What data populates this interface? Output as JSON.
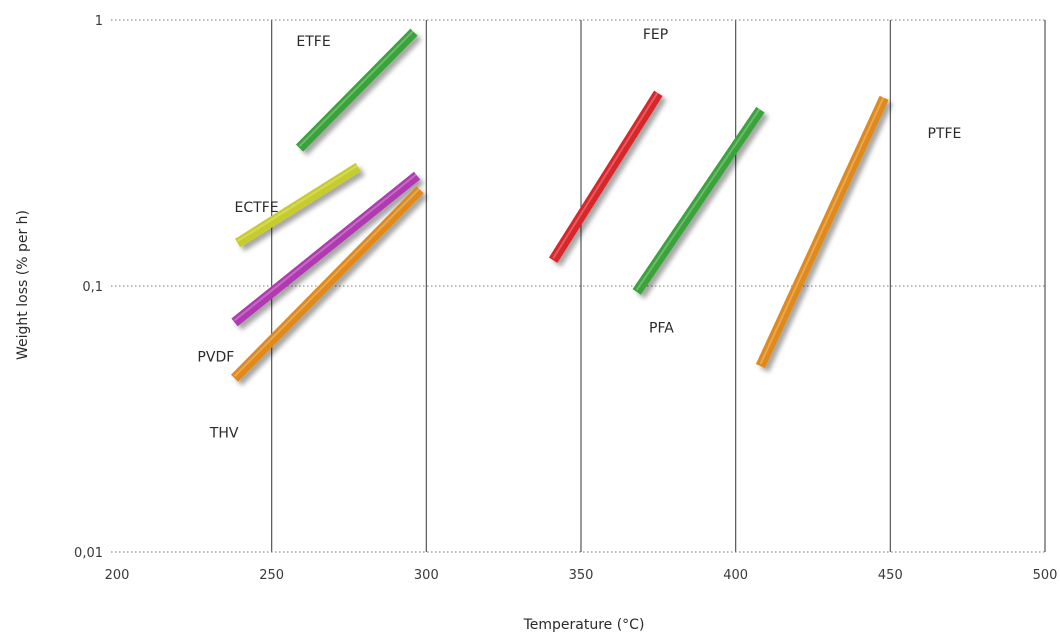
{
  "chart_data": {
    "type": "line",
    "title": "",
    "xlabel": "Temperature (°C)",
    "ylabel": "Weight loss (% per h)",
    "x_ticks": [
      "200",
      "250",
      "300",
      "350",
      "400",
      "450",
      "500"
    ],
    "y_ticks": [
      "1",
      "0,1",
      "0,01"
    ],
    "xlim": [
      200,
      500
    ],
    "ylim": [
      0.01,
      1
    ],
    "y_scale": "log",
    "grid": {
      "vertical": "solid",
      "horizontal": "dotted"
    },
    "series": [
      {
        "name": "ETFE",
        "color": "#3aa33a",
        "points": [
          [
            259,
            0.33
          ],
          [
            296,
            0.9
          ]
        ]
      },
      {
        "name": "ECTFE",
        "color": "#c6cc2a",
        "points": [
          [
            239,
            0.145
          ],
          [
            278,
            0.28
          ]
        ]
      },
      {
        "name": "PVDF",
        "color": "#b03ab0",
        "points": [
          [
            238,
            0.073
          ],
          [
            297,
            0.26
          ]
        ]
      },
      {
        "name": "THV",
        "color": "#e08a1e",
        "points": [
          [
            238,
            0.045
          ],
          [
            298,
            0.23
          ]
        ]
      },
      {
        "name": "FEP",
        "color": "#d9252a",
        "points": [
          [
            341,
            0.125
          ],
          [
            375,
            0.53
          ]
        ]
      },
      {
        "name": "PFA",
        "color": "#3aa33a",
        "points": [
          [
            368,
            0.095
          ],
          [
            408,
            0.46
          ]
        ]
      },
      {
        "name": "PTFE",
        "color": "#e08a1e",
        "points": [
          [
            408,
            0.05
          ],
          [
            448,
            0.51
          ]
        ]
      }
    ],
    "annotations": [
      {
        "text": "ETFE",
        "x": 258,
        "y": 0.8
      },
      {
        "text": "ECTFE",
        "x": 238,
        "y": 0.19
      },
      {
        "text": "PVDF",
        "x": 226,
        "y": 0.052
      },
      {
        "text": "THV",
        "x": 230,
        "y": 0.027
      },
      {
        "text": "FEP",
        "x": 370,
        "y": 0.85
      },
      {
        "text": "PFA",
        "x": 372,
        "y": 0.067
      },
      {
        "text": "PTFE",
        "x": 462,
        "y": 0.36
      }
    ]
  }
}
